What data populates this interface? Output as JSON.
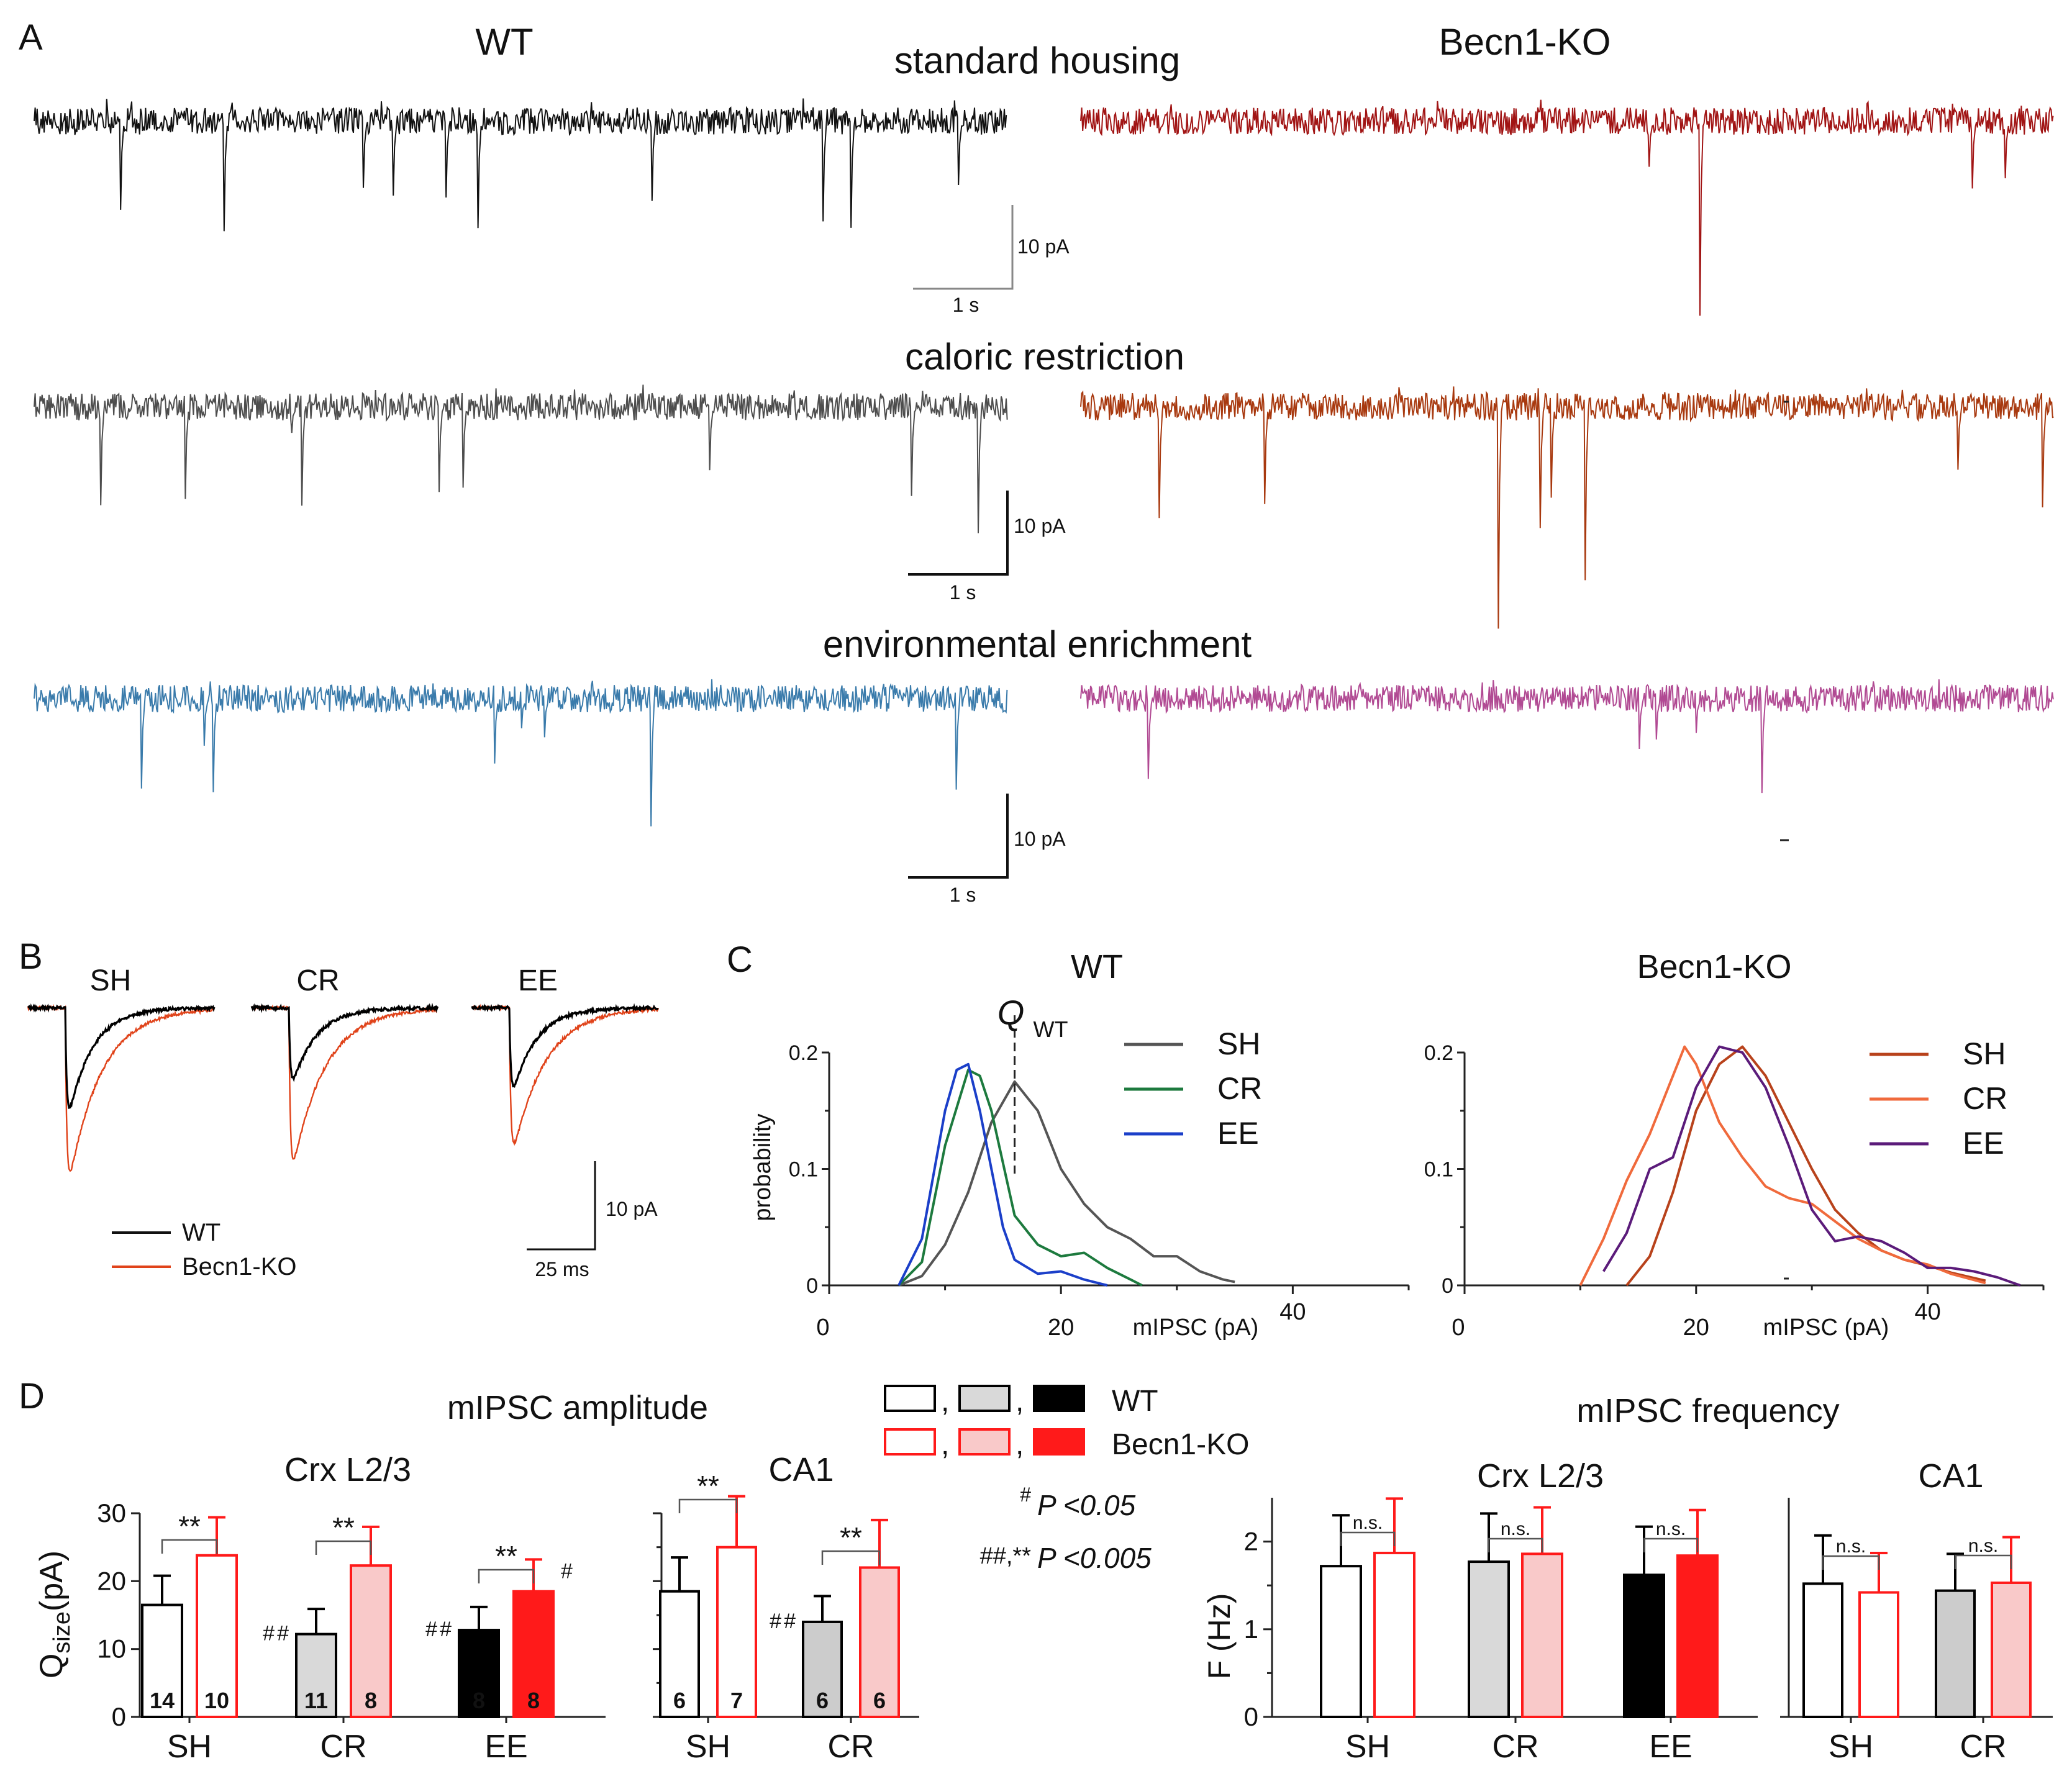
{
  "panels": {
    "A": "A",
    "B": "B",
    "C": "C",
    "D": "D"
  },
  "panel_a": {
    "col_left": "WT",
    "col_right": "Becn1-KO",
    "rows": [
      "standard housing",
      "caloric restriction",
      "environmental enrichment"
    ],
    "scalebar_y": "10 pA",
    "scalebar_x": "1 s",
    "colors": {
      "wt": [
        "#111111",
        "#4d4d4d",
        "#3a7bab"
      ],
      "ko": [
        "#a11414",
        "#a8390f",
        "#b14a93"
      ]
    }
  },
  "panel_b": {
    "conditions": [
      "SH",
      "CR",
      "EE"
    ],
    "legend": [
      "WT",
      "Becn1-KO"
    ],
    "scalebar_y": "10 pA",
    "scalebar_x": "25 ms",
    "colors": {
      "wt": "#000000",
      "ko": "#e0431a"
    }
  },
  "panel_d": {
    "amplitude_title": "mIPSC amplitude",
    "frequency_title": "mIPSC frequency",
    "legend_wt": "WT",
    "legend_ko": "Becn1-KO",
    "legend_comma": ",",
    "stat1_symbol": "#",
    "stat1_text": "P <0.05",
    "stat2_symbol": "##,**",
    "stat2_text": "P <0.005"
  },
  "chart_data": [
    {
      "id": "C-WT",
      "type": "line",
      "title": "WT",
      "xlabel": "mIPSC (pA)",
      "ylabel": "probability",
      "xlim": [
        0,
        50
      ],
      "ylim": [
        0,
        0.2
      ],
      "xticks": [
        "0",
        "20",
        "40"
      ],
      "yticks": [
        "0",
        "0.1",
        "0.2"
      ],
      "annotation": "Q",
      "annotation_sub": "WT",
      "annotation_x": 16,
      "legend_position": "top-right",
      "series": [
        {
          "name": "SH",
          "color": "#555555",
          "points": [
            [
              6,
              0
            ],
            [
              8,
              0.008
            ],
            [
              10,
              0.035
            ],
            [
              12,
              0.08
            ],
            [
              14,
              0.14
            ],
            [
              16,
              0.175
            ],
            [
              18,
              0.15
            ],
            [
              20,
              0.1
            ],
            [
              22,
              0.07
            ],
            [
              24,
              0.05
            ],
            [
              26,
              0.04
            ],
            [
              28,
              0.025
            ],
            [
              30,
              0.025
            ],
            [
              32,
              0.012
            ],
            [
              34,
              0.005
            ],
            [
              35,
              0.003
            ]
          ]
        },
        {
          "name": "CR",
          "color": "#1d7a3e",
          "points": [
            [
              6,
              0
            ],
            [
              8,
              0.02
            ],
            [
              10,
              0.12
            ],
            [
              12,
              0.185
            ],
            [
              13,
              0.18
            ],
            [
              14,
              0.15
            ],
            [
              16,
              0.06
            ],
            [
              18,
              0.035
            ],
            [
              20,
              0.025
            ],
            [
              22,
              0.028
            ],
            [
              24,
              0.015
            ],
            [
              26,
              0.005
            ],
            [
              27,
              0
            ]
          ]
        },
        {
          "name": "EE",
          "color": "#1b3fc9",
          "points": [
            [
              6,
              0
            ],
            [
              8,
              0.04
            ],
            [
              10,
              0.15
            ],
            [
              11,
              0.185
            ],
            [
              12,
              0.19
            ],
            [
              13,
              0.15
            ],
            [
              14,
              0.1
            ],
            [
              15,
              0.05
            ],
            [
              16,
              0.022
            ],
            [
              18,
              0.01
            ],
            [
              20,
              0.012
            ],
            [
              22,
              0.005
            ],
            [
              24,
              0
            ]
          ]
        }
      ]
    },
    {
      "id": "C-KO",
      "type": "line",
      "title": "Becn1-KO",
      "xlabel": "mIPSC (pA)",
      "ylabel": "",
      "xlim": [
        0,
        50
      ],
      "ylim": [
        0,
        0.2
      ],
      "xticks": [
        "0",
        "20",
        "40"
      ],
      "yticks": [
        "0",
        "0.1",
        "0.2"
      ],
      "legend_position": "top-right",
      "series": [
        {
          "name": "SH",
          "color": "#b8421b",
          "points": [
            [
              14,
              0
            ],
            [
              16,
              0.025
            ],
            [
              18,
              0.08
            ],
            [
              20,
              0.15
            ],
            [
              22,
              0.19
            ],
            [
              24,
              0.205
            ],
            [
              26,
              0.18
            ],
            [
              28,
              0.14
            ],
            [
              30,
              0.1
            ],
            [
              32,
              0.065
            ],
            [
              34,
              0.045
            ],
            [
              36,
              0.03
            ],
            [
              38,
              0.022
            ],
            [
              40,
              0.017
            ],
            [
              42,
              0.011
            ],
            [
              45,
              0.004
            ]
          ]
        },
        {
          "name": "CR",
          "color": "#f06a3c",
          "points": [
            [
              10,
              0
            ],
            [
              12,
              0.04
            ],
            [
              14,
              0.09
            ],
            [
              16,
              0.13
            ],
            [
              18,
              0.18
            ],
            [
              19,
              0.205
            ],
            [
              20,
              0.19
            ],
            [
              22,
              0.14
            ],
            [
              24,
              0.11
            ],
            [
              26,
              0.085
            ],
            [
              28,
              0.075
            ],
            [
              30,
              0.07
            ],
            [
              32,
              0.055
            ],
            [
              34,
              0.04
            ],
            [
              36,
              0.03
            ],
            [
              38,
              0.022
            ],
            [
              40,
              0.018
            ],
            [
              42,
              0.01
            ],
            [
              45,
              0.002
            ]
          ]
        },
        {
          "name": "EE",
          "color": "#5b1b7a",
          "points": [
            [
              12,
              0.012
            ],
            [
              14,
              0.045
            ],
            [
              16,
              0.1
            ],
            [
              18,
              0.11
            ],
            [
              20,
              0.17
            ],
            [
              22,
              0.205
            ],
            [
              24,
              0.2
            ],
            [
              26,
              0.17
            ],
            [
              28,
              0.12
            ],
            [
              30,
              0.065
            ],
            [
              32,
              0.038
            ],
            [
              34,
              0.042
            ],
            [
              36,
              0.038
            ],
            [
              38,
              0.028
            ],
            [
              40,
              0.015
            ],
            [
              42,
              0.015
            ],
            [
              44,
              0.012
            ],
            [
              46,
              0.007
            ],
            [
              48,
              0
            ]
          ]
        }
      ]
    },
    {
      "id": "D-amp-crx",
      "type": "bar",
      "title": "Crx L2/3",
      "ylabel": "Q",
      "ylabel_sub": "size",
      "ylabel_unit": "(pA)",
      "ylim": [
        0,
        30
      ],
      "yticks": [
        "0",
        "10",
        "20",
        "30"
      ],
      "categories": [
        "SH",
        "CR",
        "EE"
      ],
      "series": [
        {
          "name": "WT",
          "values": [
            16.5,
            12.2,
            12.8
          ],
          "err": [
            4.3,
            3.7,
            3.4
          ],
          "n": [
            "14",
            "11",
            "8"
          ],
          "hashes": [
            "",
            "##",
            "##"
          ]
        },
        {
          "name": "Becn1-KO",
          "values": [
            23.8,
            22.3,
            18.5
          ],
          "err": [
            5.6,
            5.7,
            4.7
          ],
          "n": [
            "10",
            "8",
            "8"
          ],
          "hashes": [
            "",
            "",
            "#"
          ]
        }
      ],
      "significance": [
        "**",
        "**",
        "**"
      ]
    },
    {
      "id": "D-amp-ca1",
      "type": "bar",
      "title": "CA1",
      "ylim": [
        0,
        30
      ],
      "categories": [
        "SH",
        "CR"
      ],
      "series": [
        {
          "name": "WT",
          "values": [
            18.5,
            14.0
          ],
          "err": [
            5.0,
            3.8
          ],
          "n": [
            "6",
            "6"
          ],
          "hashes": [
            "",
            "##"
          ]
        },
        {
          "name": "Becn1-KO",
          "values": [
            25.0,
            22.0
          ],
          "err": [
            7.5,
            7.0
          ],
          "n": [
            "7",
            "6"
          ],
          "hashes": [
            "",
            ""
          ]
        }
      ],
      "significance": [
        "**",
        "**"
      ]
    },
    {
      "id": "D-freq-crx",
      "type": "bar",
      "title": "Crx L2/3",
      "ylabel": "F (Hz)",
      "ylim": [
        0,
        2.5
      ],
      "yticks": [
        "0",
        "1",
        "2"
      ],
      "categories": [
        "SH",
        "CR",
        "EE"
      ],
      "series": [
        {
          "name": "WT",
          "values": [
            1.72,
            1.77,
            1.62
          ],
          "err": [
            0.58,
            0.55,
            0.55
          ]
        },
        {
          "name": "Becn1-KO",
          "values": [
            1.87,
            1.86,
            1.84
          ],
          "err": [
            0.62,
            0.53,
            0.52
          ]
        }
      ],
      "significance": [
        "n.s.",
        "n.s.",
        "n.s."
      ]
    },
    {
      "id": "D-freq-ca1",
      "type": "bar",
      "title": "CA1",
      "ylim": [
        0,
        2.5
      ],
      "categories": [
        "SH",
        "CR"
      ],
      "series": [
        {
          "name": "WT",
          "values": [
            1.52,
            1.44
          ],
          "err": [
            0.55,
            0.42
          ]
        },
        {
          "name": "Becn1-KO",
          "values": [
            1.42,
            1.53
          ],
          "err": [
            0.45,
            0.52
          ]
        }
      ],
      "significance": [
        "n.s.",
        "n.s."
      ]
    }
  ]
}
